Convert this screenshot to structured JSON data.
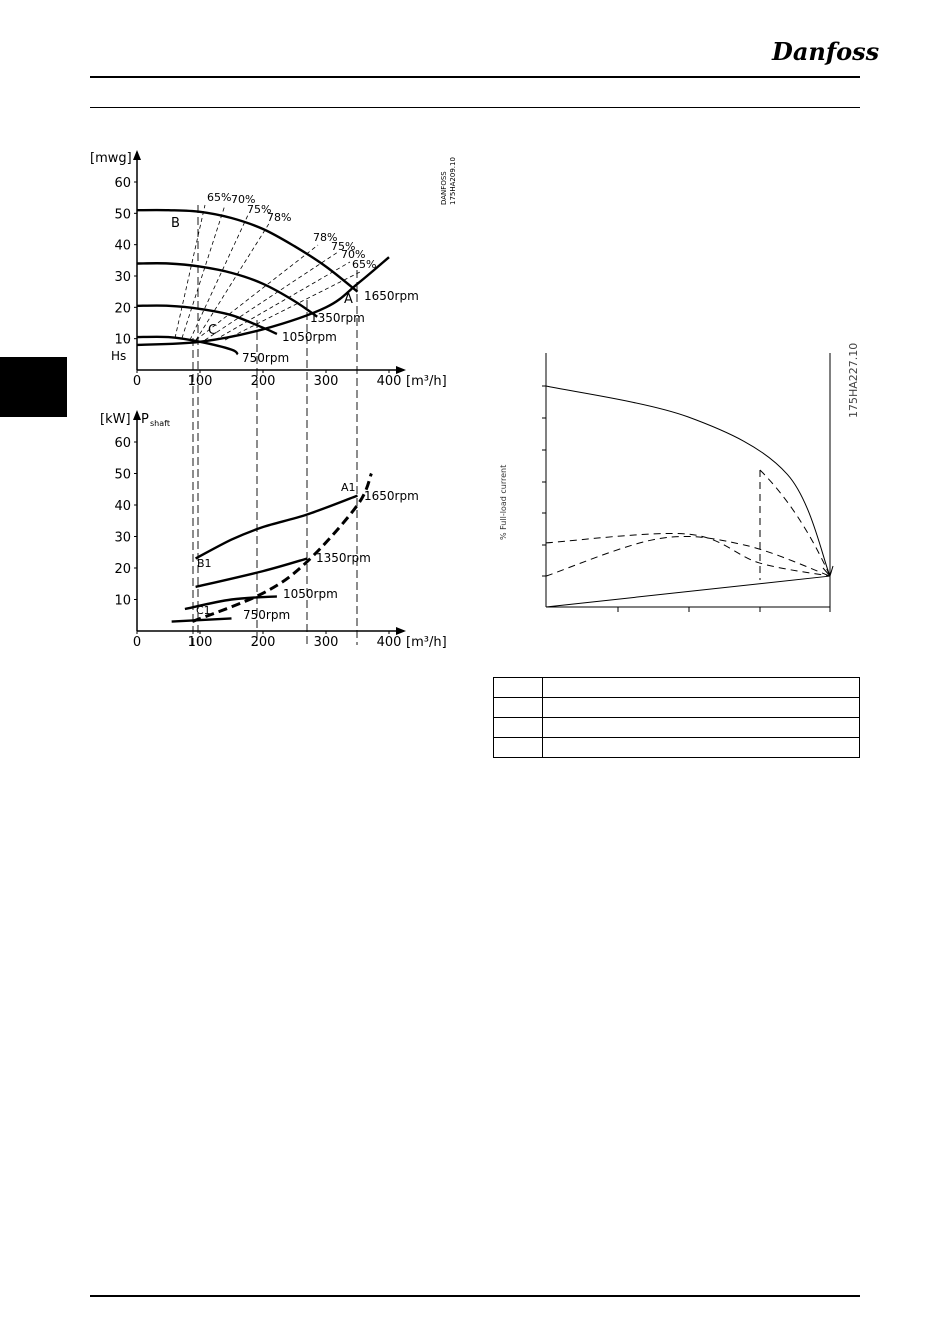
{
  "header": {
    "brand": "Danfoss"
  },
  "chart_data": [
    {
      "type": "line",
      "title": "",
      "ylabel": "[mwg]",
      "xlabel": "[m³/h]",
      "y_ticks": [
        "60",
        "50",
        "40",
        "30",
        "20",
        "10"
      ],
      "x_ticks": [
        "0",
        "100",
        "200",
        "300",
        "400"
      ],
      "ylim": [
        0,
        65
      ],
      "xlim": [
        0,
        420
      ],
      "static_head_label": "Hs",
      "point_labels": {
        "A": "A",
        "B": "B",
        "C": "C"
      },
      "efficiency_labels_left": [
        "65%",
        "70%",
        "75%",
        "78%"
      ],
      "efficiency_labels_right": [
        "78%",
        "75%",
        "70%",
        "65%"
      ],
      "speed_labels": [
        "1650rpm",
        "1350rpm",
        "1050rpm",
        "750rpm"
      ],
      "series": [
        {
          "name": "1650rpm",
          "x": [
            0,
            50,
            100,
            150,
            200,
            250,
            300,
            350
          ],
          "y": [
            51,
            51,
            50.5,
            48.5,
            45,
            39.5,
            33,
            25
          ]
        },
        {
          "name": "1350rpm",
          "x": [
            0,
            50,
            100,
            150,
            200,
            250,
            286
          ],
          "y": [
            34,
            34,
            33,
            31,
            27.5,
            22,
            17
          ]
        },
        {
          "name": "1050rpm",
          "x": [
            0,
            50,
            100,
            150,
            200,
            222
          ],
          "y": [
            20.5,
            20.5,
            19.5,
            17.5,
            13.5,
            11.5
          ]
        },
        {
          "name": "750rpm",
          "x": [
            0,
            50,
            100,
            150,
            160
          ],
          "y": [
            10.5,
            10.5,
            9,
            6.5,
            5
          ]
        },
        {
          "x": [
            0,
            100,
            200,
            300,
            350,
            400
          ],
          "y": [
            8,
            9,
            13,
            20,
            27.5,
            36
          ]
        }
      ],
      "marker_flows": [
        100,
        193,
        270,
        350
      ]
    },
    {
      "type": "line",
      "ylabel": "[kW]",
      "ylabel_symbol": "P",
      "ylabel_sub": "shaft",
      "xlabel": "[m³/h]",
      "y_ticks": [
        "60",
        "50",
        "40",
        "30",
        "20",
        "10"
      ],
      "x_ticks": [
        "0",
        "100",
        "200",
        "300",
        "400"
      ],
      "ylim": [
        0,
        65
      ],
      "xlim": [
        0,
        420
      ],
      "point_labels": {
        "A1": "A1",
        "B1": "B1",
        "C1": "C1"
      },
      "speed_labels": [
        "1650rpm",
        "1350rpm",
        "1050rpm",
        "750rpm"
      ],
      "series": [
        {
          "name": "1650rpm",
          "x": [
            93,
            150,
            200,
            270,
            350
          ],
          "y": [
            23,
            29,
            33,
            37,
            43
          ]
        },
        {
          "name": "1350rpm",
          "x": [
            93,
            200,
            270
          ],
          "y": [
            14,
            19,
            23
          ]
        },
        {
          "name": "1050rpm",
          "x": [
            76,
            150,
            222
          ],
          "y": [
            7,
            10,
            11
          ]
        },
        {
          "name": "750rpm",
          "x": [
            55,
            150
          ],
          "y": [
            3,
            4
          ]
        },
        {
          "x": [
            88,
            200,
            270,
            350,
            372
          ],
          "y": [
            3,
            12,
            22,
            40,
            50
          ]
        }
      ]
    },
    {
      "type": "line",
      "ylabel": "% Full-load current",
      "series": [
        {
          "x": [
            0,
            0.5,
            0.85,
            1
          ],
          "y": [
            1.0,
            0.86,
            0.6,
            0.14
          ]
        },
        {
          "x": [
            0,
            1
          ],
          "y": [
            0,
            0.14
          ]
        },
        {
          "x": [
            0,
            0.5,
            0.75,
            1
          ],
          "y": [
            0.29,
            0.33,
            0.2,
            0.14
          ]
        },
        {
          "x": [
            0,
            0.4,
            0.7,
            1
          ],
          "y": [
            0.14,
            0.31,
            0.28,
            0.14
          ]
        }
      ]
    }
  ],
  "figure_codes": {
    "fig1_line1": "DANFOSS",
    "fig1_line2": "175HA209.10",
    "fig2": "175HA227.10"
  },
  "legend_rows": [
    {
      "key": "",
      "desc": ""
    },
    {
      "key": "",
      "desc": ""
    },
    {
      "key": "",
      "desc": ""
    },
    {
      "key": "",
      "desc": ""
    }
  ]
}
